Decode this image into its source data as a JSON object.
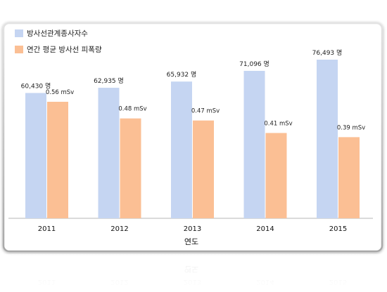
{
  "chart_data": {
    "type": "bar",
    "categories": [
      "2011",
      "2012",
      "2013",
      "2014",
      "2015"
    ],
    "xlabel": "연도",
    "ylabel": "",
    "grid": false,
    "legend_position": "top-left",
    "series": [
      {
        "name": "방사선관계종사자수",
        "color": "#c5d5f2",
        "values": [
          60430,
          62935,
          65932,
          71096,
          76493
        ],
        "labels": [
          "60,430 명",
          "62,935 명",
          "65,932 명",
          "71,096 명",
          "76,493 명"
        ]
      },
      {
        "name": "연간 평균 방사선 피폭량",
        "color": "#fbbf94",
        "values": [
          0.56,
          0.48,
          0.47,
          0.41,
          0.39
        ],
        "labels": [
          "0.56 mSv",
          "0.48 mSv",
          "0.47 mSv",
          "0.41 mSv",
          "0.39 mSv"
        ]
      }
    ]
  }
}
